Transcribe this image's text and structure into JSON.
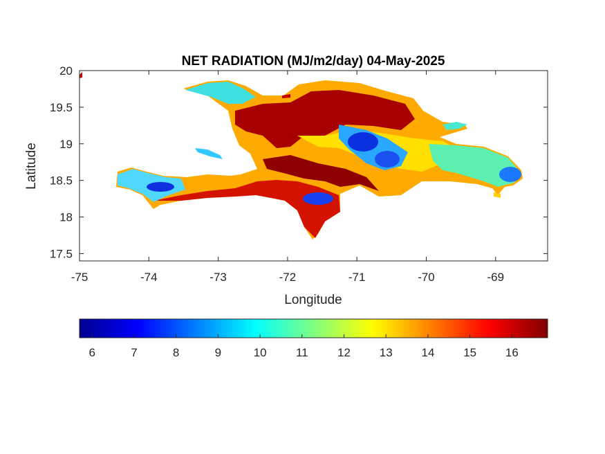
{
  "chart_data": {
    "type": "heatmap",
    "title": "NET RADIATION (MJ/m2/day) 04-May-2025",
    "xlabel": "Longitude",
    "ylabel": "Latitude",
    "xlim": [
      -75,
      -68.25
    ],
    "ylim": [
      17.4,
      20
    ],
    "x_ticks": [
      "-75",
      "-74",
      "-73",
      "-72",
      "-71",
      "-70",
      "-69"
    ],
    "x_tick_values": [
      -75,
      -74,
      -73,
      -72,
      -71,
      -70,
      -69
    ],
    "y_ticks": [
      "20",
      "19.5",
      "19",
      "18.5",
      "18",
      "17.5"
    ],
    "y_tick_values": [
      20,
      19.5,
      19,
      18.5,
      18,
      17.5
    ],
    "colorbar": {
      "colormap": "jet",
      "range": [
        5.7,
        16.85
      ],
      "ticks": [
        "6",
        "7",
        "8",
        "9",
        "10",
        "11",
        "12",
        "13",
        "14",
        "15",
        "16"
      ],
      "tick_values": [
        6,
        7,
        8,
        9,
        10,
        11,
        12,
        13,
        14,
        15,
        16
      ],
      "placement": "bottom"
    },
    "grid": false,
    "colors": [
      "#00008f",
      "#0000ff",
      "#00ffff",
      "#ffff00",
      "#ff0000",
      "#800000"
    ]
  }
}
